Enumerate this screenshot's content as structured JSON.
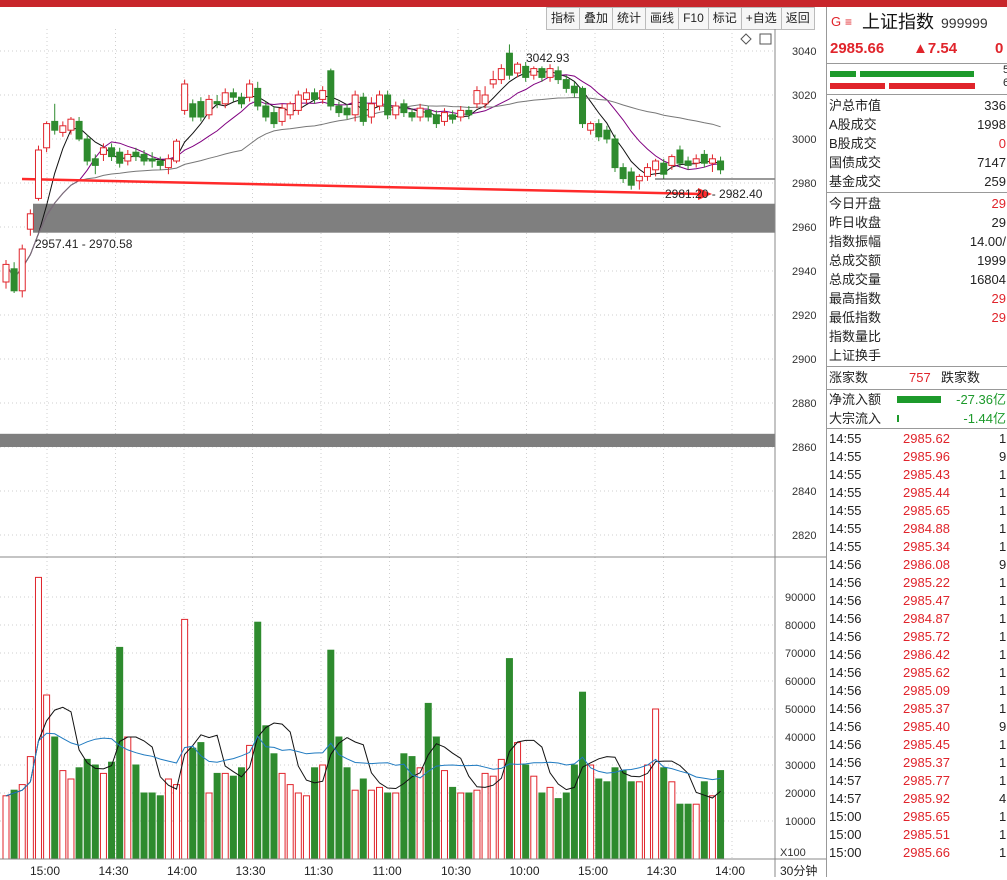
{
  "toolbar": {
    "items": [
      "指标",
      "叠加",
      "统计",
      "画线",
      "F10",
      "标记",
      "+自选",
      "返回"
    ]
  },
  "chart": {
    "price_axis": [
      "3040",
      "3020",
      "3000",
      "2980",
      "2960",
      "2940",
      "2920",
      "2900",
      "2880",
      "2860",
      "2840",
      "2820"
    ],
    "volume_axis": [
      "90000",
      "80000",
      "70000",
      "60000",
      "50000",
      "40000",
      "30000",
      "20000",
      "10000"
    ],
    "volume_unit": "X100",
    "period": "30分钟",
    "time_labels": [
      "15:00",
      "14:30",
      "14:00",
      "13:30",
      "11:30",
      "11:00",
      "10:30",
      "10:00",
      "15:00",
      "14:30",
      "14:00"
    ],
    "annotations": {
      "high": "3042.93",
      "gap_upper": "2981.20 - 2982.40",
      "gap_lower": "2957.41 - 2970.58"
    }
  },
  "chart_data": {
    "type": "candlestick",
    "price_range": [
      2810,
      3050
    ],
    "volume_range": [
      0,
      100000
    ],
    "candles": [
      {
        "o": 2935,
        "c": 2943,
        "h": 2945,
        "l": 2932,
        "v": 19000
      },
      {
        "o": 2941,
        "c": 2931,
        "h": 2944,
        "l": 2930,
        "v": 21000
      },
      {
        "o": 2931,
        "c": 2950,
        "h": 2952,
        "l": 2928,
        "v": 23000
      },
      {
        "o": 2959,
        "c": 2966,
        "h": 2968,
        "l": 2956,
        "v": 33000
      },
      {
        "o": 2973,
        "c": 2995,
        "h": 2997,
        "l": 2972,
        "v": 97000
      },
      {
        "o": 2996,
        "c": 3007,
        "h": 3008,
        "l": 2994,
        "v": 55000
      },
      {
        "o": 3008,
        "c": 3004,
        "h": 3016,
        "l": 3002,
        "v": 40000
      },
      {
        "o": 3003,
        "c": 3006,
        "h": 3008,
        "l": 3001,
        "v": 28000
      },
      {
        "o": 3004,
        "c": 3009,
        "h": 3010,
        "l": 3002,
        "v": 25000
      },
      {
        "o": 3008,
        "c": 3000,
        "h": 3010,
        "l": 2999,
        "v": 29000
      },
      {
        "o": 3000,
        "c": 2990,
        "h": 3002,
        "l": 2988,
        "v": 32000
      },
      {
        "o": 2991,
        "c": 2988,
        "h": 2993,
        "l": 2984,
        "v": 30000
      },
      {
        "o": 2993,
        "c": 2996,
        "h": 2998,
        "l": 2990,
        "v": 27000
      },
      {
        "o": 2996,
        "c": 2992,
        "h": 2998,
        "l": 2990,
        "v": 31000
      },
      {
        "o": 2994,
        "c": 2989,
        "h": 2996,
        "l": 2987,
        "v": 72000
      },
      {
        "o": 2990,
        "c": 2993,
        "h": 2995,
        "l": 2988,
        "v": 40000
      },
      {
        "o": 2994,
        "c": 2992,
        "h": 2996,
        "l": 2990,
        "v": 30000
      },
      {
        "o": 2993,
        "c": 2990,
        "h": 2995,
        "l": 2988,
        "v": 20000
      },
      {
        "o": 2991,
        "c": 2990,
        "h": 2994,
        "l": 2987,
        "v": 20000
      },
      {
        "o": 2990,
        "c": 2988,
        "h": 2992,
        "l": 2986,
        "v": 19000
      },
      {
        "o": 2987,
        "c": 2991,
        "h": 2993,
        "l": 2984,
        "v": 25000
      },
      {
        "o": 2990,
        "c": 2999,
        "h": 3000,
        "l": 2989,
        "v": 23000
      },
      {
        "o": 3013,
        "c": 3025,
        "h": 3027,
        "l": 3011,
        "v": 82000
      },
      {
        "o": 3016,
        "c": 3010,
        "h": 3018,
        "l": 3008,
        "v": 36000
      },
      {
        "o": 3017,
        "c": 3010,
        "h": 3019,
        "l": 3008,
        "v": 38000
      },
      {
        "o": 3011,
        "c": 3018,
        "h": 3020,
        "l": 3009,
        "v": 20000
      },
      {
        "o": 3017,
        "c": 3016,
        "h": 3020,
        "l": 3014,
        "v": 27000
      },
      {
        "o": 3016,
        "c": 3021,
        "h": 3023,
        "l": 3014,
        "v": 27000
      },
      {
        "o": 3021,
        "c": 3019,
        "h": 3023,
        "l": 3017,
        "v": 26000
      },
      {
        "o": 3019,
        "c": 3016,
        "h": 3021,
        "l": 3014,
        "v": 29000
      },
      {
        "o": 3019,
        "c": 3025,
        "h": 3027,
        "l": 3017,
        "v": 37000
      },
      {
        "o": 3023,
        "c": 3015,
        "h": 3026,
        "l": 3013,
        "v": 81000
      },
      {
        "o": 3015,
        "c": 3010,
        "h": 3017,
        "l": 3008,
        "v": 44000
      },
      {
        "o": 3012,
        "c": 3007,
        "h": 3015,
        "l": 3005,
        "v": 34000
      },
      {
        "o": 3008,
        "c": 3014,
        "h": 3016,
        "l": 3006,
        "v": 27000
      },
      {
        "o": 3011,
        "c": 3016,
        "h": 3017,
        "l": 3009,
        "v": 23000
      },
      {
        "o": 3013,
        "c": 3020,
        "h": 3022,
        "l": 3011,
        "v": 20000
      },
      {
        "o": 3018,
        "c": 3021,
        "h": 3023,
        "l": 3016,
        "v": 19000
      },
      {
        "o": 3021,
        "c": 3018,
        "h": 3023,
        "l": 3016,
        "v": 29000
      },
      {
        "o": 3018,
        "c": 3022,
        "h": 3024,
        "l": 3016,
        "v": 30000
      },
      {
        "o": 3031,
        "c": 3015,
        "h": 3032,
        "l": 3013,
        "v": 71000
      },
      {
        "o": 3015,
        "c": 3012,
        "h": 3017,
        "l": 3010,
        "v": 40000
      },
      {
        "o": 3014,
        "c": 3011,
        "h": 3016,
        "l": 3009,
        "v": 29000
      },
      {
        "o": 3011,
        "c": 3020,
        "h": 3022,
        "l": 3008,
        "v": 21000
      },
      {
        "o": 3019,
        "c": 3008,
        "h": 3021,
        "l": 3006,
        "v": 25000
      },
      {
        "o": 3010,
        "c": 3016,
        "h": 3019,
        "l": 3007,
        "v": 21000
      },
      {
        "o": 3015,
        "c": 3020,
        "h": 3022,
        "l": 3013,
        "v": 22000
      },
      {
        "o": 3020,
        "c": 3011,
        "h": 3022,
        "l": 3009,
        "v": 20000
      },
      {
        "o": 3011,
        "c": 3015,
        "h": 3017,
        "l": 3009,
        "v": 20000
      },
      {
        "o": 3016,
        "c": 3012,
        "h": 3018,
        "l": 3010,
        "v": 34000
      },
      {
        "o": 3012,
        "c": 3010,
        "h": 3014,
        "l": 3008,
        "v": 33000
      },
      {
        "o": 3010,
        "c": 3014,
        "h": 3016,
        "l": 3008,
        "v": 29000
      },
      {
        "o": 3013,
        "c": 3010,
        "h": 3015,
        "l": 3008,
        "v": 52000
      },
      {
        "o": 3011,
        "c": 3007,
        "h": 3013,
        "l": 3005,
        "v": 40000
      },
      {
        "o": 3008,
        "c": 3012,
        "h": 3014,
        "l": 3006,
        "v": 28000
      },
      {
        "o": 3011,
        "c": 3009,
        "h": 3013,
        "l": 3007,
        "v": 22000
      },
      {
        "o": 3010,
        "c": 3013,
        "h": 3015,
        "l": 3008,
        "v": 20000
      },
      {
        "o": 3013,
        "c": 3011,
        "h": 3015,
        "l": 3009,
        "v": 20000
      },
      {
        "o": 3016,
        "c": 3022,
        "h": 3024,
        "l": 3014,
        "v": 21000
      },
      {
        "o": 3016,
        "c": 3020,
        "h": 3024,
        "l": 3014,
        "v": 27000
      },
      {
        "o": 3025,
        "c": 3027,
        "h": 3031,
        "l": 3023,
        "v": 26000
      },
      {
        "o": 3027,
        "c": 3032,
        "h": 3034,
        "l": 3025,
        "v": 32000
      },
      {
        "o": 3039,
        "c": 3029,
        "h": 3043,
        "l": 3027,
        "v": 68000
      },
      {
        "o": 3030,
        "c": 3034,
        "h": 3035,
        "l": 3028,
        "v": 38000
      },
      {
        "o": 3033,
        "c": 3028,
        "h": 3035,
        "l": 3026,
        "v": 30000
      },
      {
        "o": 3029,
        "c": 3032,
        "h": 3033,
        "l": 3027,
        "v": 26000
      },
      {
        "o": 3032,
        "c": 3028,
        "h": 3033,
        "l": 3026,
        "v": 20000
      },
      {
        "o": 3028,
        "c": 3032,
        "h": 3034,
        "l": 3026,
        "v": 22000
      },
      {
        "o": 3031,
        "c": 3027,
        "h": 3033,
        "l": 3025,
        "v": 18000
      },
      {
        "o": 3027,
        "c": 3023,
        "h": 3029,
        "l": 3021,
        "v": 20000
      },
      {
        "o": 3024,
        "c": 3021,
        "h": 3026,
        "l": 3019,
        "v": 30000
      },
      {
        "o": 3023,
        "c": 3007,
        "h": 3024,
        "l": 3005,
        "v": 56000
      },
      {
        "o": 3004,
        "c": 3007,
        "h": 3008,
        "l": 3002,
        "v": 30000
      },
      {
        "o": 3007,
        "c": 3001,
        "h": 3009,
        "l": 2999,
        "v": 25000
      },
      {
        "o": 3004,
        "c": 3000,
        "h": 3006,
        "l": 2998,
        "v": 24000
      },
      {
        "o": 3000,
        "c": 2987,
        "h": 3002,
        "l": 2985,
        "v": 29000
      },
      {
        "o": 2987,
        "c": 2982,
        "h": 2989,
        "l": 2980,
        "v": 28000
      },
      {
        "o": 2985,
        "c": 2979,
        "h": 2987,
        "l": 2977,
        "v": 24000
      },
      {
        "o": 2981,
        "c": 2983,
        "h": 2984,
        "l": 2977,
        "v": 24000
      },
      {
        "o": 2983,
        "c": 2987,
        "h": 2989,
        "l": 2981,
        "v": 30000
      },
      {
        "o": 2986,
        "c": 2990,
        "h": 2991,
        "l": 2983,
        "v": 50000
      },
      {
        "o": 2989,
        "c": 2984,
        "h": 2991,
        "l": 2982,
        "v": 29000
      },
      {
        "o": 2988,
        "c": 2992,
        "h": 2993,
        "l": 2986,
        "v": 24000
      },
      {
        "o": 2995,
        "c": 2989,
        "h": 2997,
        "l": 2987,
        "v": 16000
      },
      {
        "o": 2990,
        "c": 2988,
        "h": 2992,
        "l": 2986,
        "v": 16000
      },
      {
        "o": 2989,
        "c": 2991,
        "h": 2993,
        "l": 2987,
        "v": 16000
      },
      {
        "o": 2993,
        "c": 2989,
        "h": 2995,
        "l": 2987,
        "v": 24000
      },
      {
        "o": 2989,
        "c": 2991,
        "h": 2993,
        "l": 2985,
        "v": 19000
      },
      {
        "o": 2990,
        "c": 2986,
        "h": 2992,
        "l": 2984,
        "v": 28000
      }
    ],
    "zones": [
      [
        2957.41,
        2970.58
      ],
      [
        2860,
        2866
      ]
    ],
    "arrow": {
      "from": 2981.8,
      "to": 2975
    }
  },
  "panel": {
    "code_letter": "G",
    "name": "上证指数",
    "code": "999999",
    "price": "2985.66",
    "change": "▲7.54",
    "change_pct_trunc": "0",
    "bar_nums": [
      "5",
      "6"
    ],
    "stats1": [
      {
        "k": "沪总市值",
        "v": "336",
        "c": ""
      },
      {
        "k": "A股成交",
        "v": "1998",
        "c": ""
      },
      {
        "k": "B股成交",
        "v": "0",
        "c": "red"
      },
      {
        "k": "国债成交",
        "v": "7147",
        "c": ""
      },
      {
        "k": "基金成交",
        "v": "259",
        "c": ""
      }
    ],
    "stats2": [
      {
        "k": "今日开盘",
        "v": "29",
        "c": "red"
      },
      {
        "k": "昨日收盘",
        "v": "29",
        "c": ""
      },
      {
        "k": "指数振幅",
        "v": "14.00/",
        "c": ""
      },
      {
        "k": "总成交额",
        "v": "1999",
        "c": ""
      },
      {
        "k": "总成交量",
        "v": "16804",
        "c": ""
      },
      {
        "k": "最高指数",
        "v": "29",
        "c": "red"
      },
      {
        "k": "最低指数",
        "v": "29",
        "c": "red"
      },
      {
        "k": "指数量比",
        "v": "",
        "c": ""
      },
      {
        "k": "上证换手",
        "v": "",
        "c": ""
      }
    ],
    "breadth": {
      "up_label": "涨家数",
      "up_value": "757",
      "down_label": "跌家数"
    },
    "flows": [
      {
        "k": "净流入额",
        "v": "-27.36亿",
        "bar": 0.8
      },
      {
        "k": "大宗流入",
        "v": "-1.44亿",
        "bar": 0.04
      }
    ],
    "ticks": [
      {
        "t": "14:55",
        "p": "2985.62",
        "vol": "1"
      },
      {
        "t": "14:55",
        "p": "2985.96",
        "vol": "9"
      },
      {
        "t": "14:55",
        "p": "2985.43",
        "vol": "1"
      },
      {
        "t": "14:55",
        "p": "2985.44",
        "vol": "1"
      },
      {
        "t": "14:55",
        "p": "2985.65",
        "vol": "1"
      },
      {
        "t": "14:55",
        "p": "2984.88",
        "vol": "1"
      },
      {
        "t": "14:55",
        "p": "2985.34",
        "vol": "1"
      },
      {
        "t": "14:56",
        "p": "2986.08",
        "vol": "9"
      },
      {
        "t": "14:56",
        "p": "2985.22",
        "vol": "1"
      },
      {
        "t": "14:56",
        "p": "2985.47",
        "vol": "1"
      },
      {
        "t": "14:56",
        "p": "2984.87",
        "vol": "1"
      },
      {
        "t": "14:56",
        "p": "2985.72",
        "vol": "1"
      },
      {
        "t": "14:56",
        "p": "2986.42",
        "vol": "1"
      },
      {
        "t": "14:56",
        "p": "2985.62",
        "vol": "1"
      },
      {
        "t": "14:56",
        "p": "2985.09",
        "vol": "1"
      },
      {
        "t": "14:56",
        "p": "2985.37",
        "vol": "1"
      },
      {
        "t": "14:56",
        "p": "2985.40",
        "vol": "9"
      },
      {
        "t": "14:56",
        "p": "2985.45",
        "vol": "1"
      },
      {
        "t": "14:56",
        "p": "2985.37",
        "vol": "1"
      },
      {
        "t": "14:57",
        "p": "2985.77",
        "vol": "1"
      },
      {
        "t": "14:57",
        "p": "2985.92",
        "vol": "4"
      },
      {
        "t": "15:00",
        "p": "2985.65",
        "vol": "1"
      },
      {
        "t": "15:00",
        "p": "2985.51",
        "vol": "1"
      },
      {
        "t": "15:00",
        "p": "2985.66",
        "vol": "1"
      }
    ]
  }
}
